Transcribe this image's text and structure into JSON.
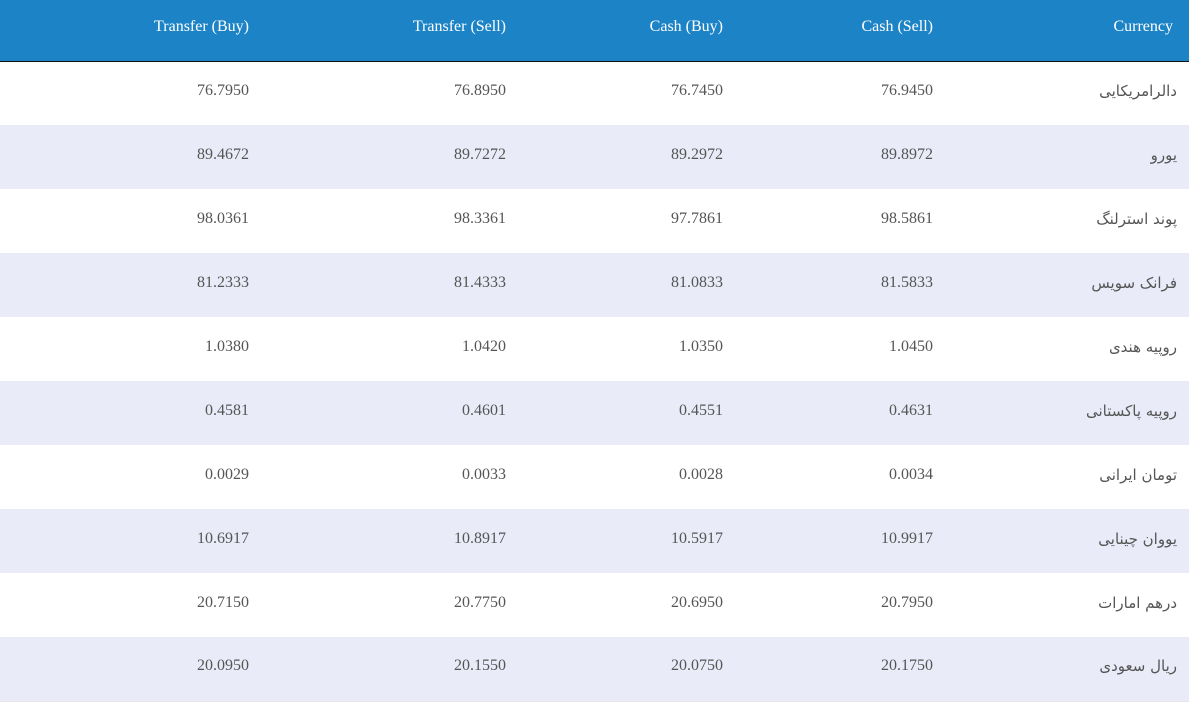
{
  "table": {
    "headers": {
      "transfer_buy": "Transfer (Buy)",
      "transfer_sell": "Transfer (Sell)",
      "cash_buy": "Cash (Buy)",
      "cash_sell": "Cash (Sell)",
      "currency": "Currency"
    },
    "rows": [
      {
        "transfer_buy": "76.7950",
        "transfer_sell": "76.8950",
        "cash_buy": "76.7450",
        "cash_sell": "76.9450",
        "currency": "دالرامریکایی"
      },
      {
        "transfer_buy": "89.4672",
        "transfer_sell": "89.7272",
        "cash_buy": "89.2972",
        "cash_sell": "89.8972",
        "currency": "یورو"
      },
      {
        "transfer_buy": "98.0361",
        "transfer_sell": "98.3361",
        "cash_buy": "97.7861",
        "cash_sell": "98.5861",
        "currency": "پوند استرلنگ"
      },
      {
        "transfer_buy": "81.2333",
        "transfer_sell": "81.4333",
        "cash_buy": "81.0833",
        "cash_sell": "81.5833",
        "currency": "فرانک سویس"
      },
      {
        "transfer_buy": "1.0380",
        "transfer_sell": "1.0420",
        "cash_buy": "1.0350",
        "cash_sell": "1.0450",
        "currency": "روپیه هندی"
      },
      {
        "transfer_buy": "0.4581",
        "transfer_sell": "0.4601",
        "cash_buy": "0.4551",
        "cash_sell": "0.4631",
        "currency": "روپیه پاکستانی"
      },
      {
        "transfer_buy": "0.0029",
        "transfer_sell": "0.0033",
        "cash_buy": "0.0028",
        "cash_sell": "0.0034",
        "currency": "تومان ایرانی"
      },
      {
        "transfer_buy": "10.6917",
        "transfer_sell": "10.8917",
        "cash_buy": "10.5917",
        "cash_sell": "10.9917",
        "currency": "یووان چینایی"
      },
      {
        "transfer_buy": "20.7150",
        "transfer_sell": "20.7750",
        "cash_buy": "20.6950",
        "cash_sell": "20.7950",
        "currency": "درهم امارات"
      },
      {
        "transfer_buy": "20.0950",
        "transfer_sell": "20.1550",
        "cash_buy": "20.0750",
        "cash_sell": "20.1750",
        "currency": "ریال سعودی"
      }
    ]
  },
  "colors": {
    "header_background": "#1c84c6",
    "header_text": "#ffffff",
    "row_alt_background": "#e9ebf8",
    "cell_text": "#555555"
  }
}
